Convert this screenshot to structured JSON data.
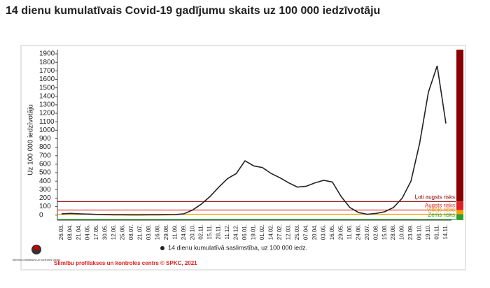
{
  "chart_data": {
    "type": "line",
    "title": "14 dienu kumulatīvais Covid-19 gadījumu skaits uz 100 000 iedzīvotāju",
    "ylabel": "Uz 100 000 iedzīvotāju",
    "categories": [
      "26.03.",
      "08.04.",
      "21.04.",
      "04.05.",
      "17.05.",
      "30.05.",
      "12.06.",
      "25.06.",
      "08.07.",
      "21.07.",
      "03.08.",
      "16.08.",
      "29.08.",
      "11.09.",
      "24.09.",
      "20.10.",
      "02.11.",
      "15.11.",
      "28.11.",
      "11.12.",
      "24.12.",
      "06.01.",
      "19.01.",
      "01.02.",
      "14.02.",
      "27.02.",
      "12.03.",
      "25.03.",
      "07.04.",
      "20.04.",
      "03.05.",
      "16.05.",
      "29.05.",
      "11.06.",
      "24.06.",
      "20.07.",
      "02.08.",
      "15.08.",
      "28.08.",
      "10.09.",
      "23.09.",
      "06.10.",
      "19.10.",
      "01.11.",
      "14.11."
    ],
    "series": [
      {
        "name": "14 dienu kumulatīvā saslimstība, uz 100 000 iedz.",
        "color": "#222222",
        "values": [
          15,
          20,
          15,
          12,
          8,
          5,
          3,
          3,
          2,
          2,
          3,
          3,
          4,
          6,
          15,
          60,
          130,
          220,
          330,
          430,
          490,
          640,
          580,
          560,
          490,
          440,
          380,
          330,
          340,
          380,
          410,
          390,
          220,
          90,
          30,
          10,
          20,
          40,
          90,
          200,
          400,
          850,
          1450,
          1760,
          1080
        ]
      }
    ],
    "ylim": [
      -60,
      1950
    ],
    "yticks": [
      0,
      100,
      200,
      300,
      400,
      500,
      600,
      700,
      800,
      900,
      1000,
      1100,
      1200,
      1300,
      1400,
      1500,
      1600,
      1700,
      1800,
      1900
    ],
    "risk_levels": [
      {
        "label": "Ļoti augsts risks",
        "value": 160,
        "color": "#8b0000"
      },
      {
        "label": "Augsts risks",
        "value": 60,
        "color": "#e02020"
      },
      {
        "label": "Vidējs risks",
        "value": 10,
        "color": "#f0a000"
      },
      {
        "label": "Zems risks",
        "value": -50,
        "color": "#2ca02c"
      }
    ],
    "logo_text": "Slimību profilakses un kontroles centrs",
    "footer": "Slimību profilakses un kontroles centrs © SPKC, 2021"
  }
}
